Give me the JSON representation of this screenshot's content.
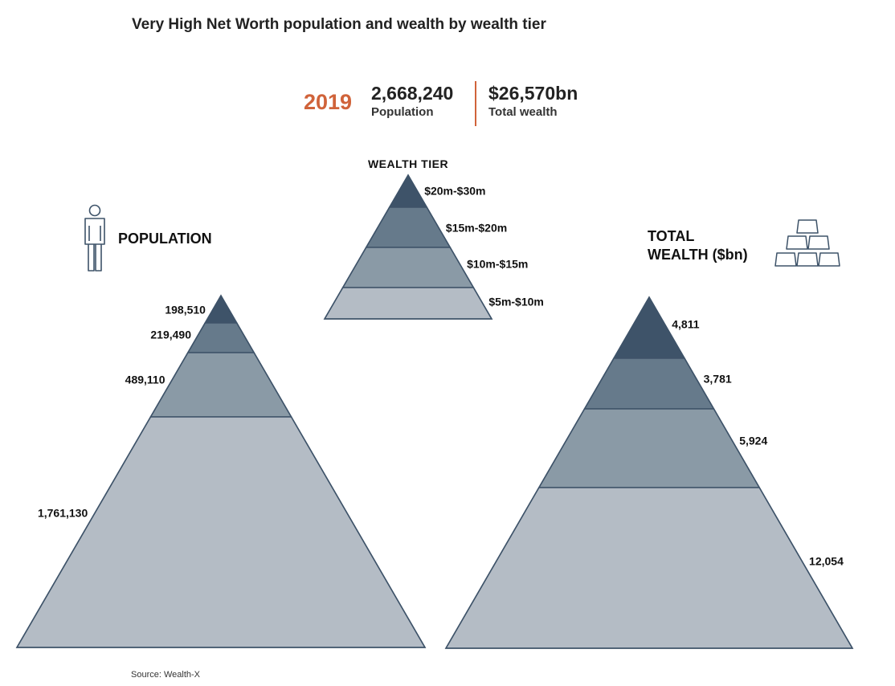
{
  "header": {
    "title": "Very High Net Worth population and wealth by wealth tier",
    "year": "2019",
    "population_value": "2,668,240",
    "population_label": "Population",
    "wealth_value": "$26,570bn",
    "wealth_label": "Total wealth"
  },
  "population_heading": "POPULATION",
  "wealth_heading_line1": "TOTAL",
  "wealth_heading_line2": "WEALTH ($bn)",
  "footer": {
    "source": "Source: Wealth-X"
  },
  "colors": {
    "tier_20_30": "#3e5369",
    "tier_15_20": "#667a8b",
    "tier_10_15": "#8a9aa6",
    "tier_5_10": "#b4bcc5",
    "outline": "#3e5369",
    "accent": "#d0633a"
  },
  "icons": {
    "population": "person-icon",
    "wealth": "gold-bars-icon"
  },
  "chart_data": [
    {
      "type": "pyramid",
      "title": "WEALTH TIER",
      "tiers": [
        "$20m-$30m",
        "$15m-$20m",
        "$10m-$15m",
        "$5m-$10m"
      ]
    },
    {
      "type": "pyramid",
      "title": "POPULATION",
      "tiers": [
        "$20m-$30m",
        "$15m-$20m",
        "$10m-$15m",
        "$5m-$10m"
      ],
      "values": [
        198510,
        219490,
        489110,
        1761130
      ],
      "labels": [
        "198,510",
        "219,490",
        "489,110",
        "1,761,130"
      ]
    },
    {
      "type": "pyramid",
      "title": "TOTAL WEALTH ($bn)",
      "tiers": [
        "$20m-$30m",
        "$15m-$20m",
        "$10m-$15m",
        "$5m-$10m"
      ],
      "values": [
        4811,
        3781,
        5924,
        12054
      ],
      "labels": [
        "4,811",
        "3,781",
        "5,924",
        "12,054"
      ]
    }
  ]
}
